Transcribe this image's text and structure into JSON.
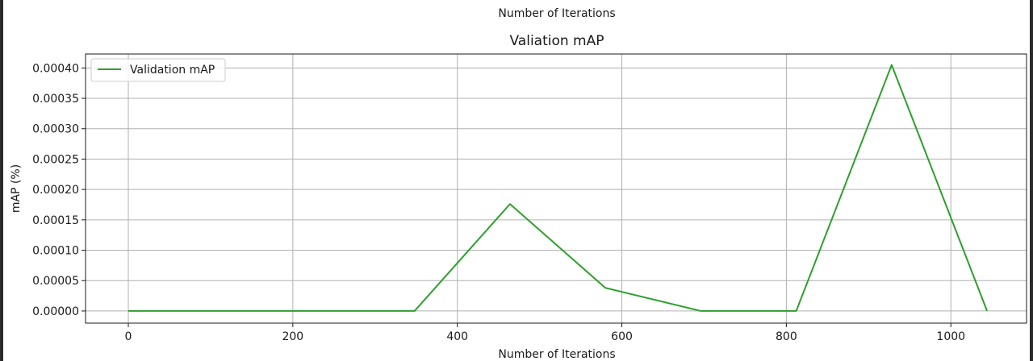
{
  "previous_chart": {
    "xlabel": "Number of Iterations"
  },
  "chart_data": {
    "type": "line",
    "title": "Valiation mAP",
    "xlabel": "Number of Iterations",
    "ylabel": "mAP (%)",
    "xlim": [
      -52,
      1092
    ],
    "ylim": [
      -2e-05,
      0.000423
    ],
    "xticks": [
      0,
      200,
      400,
      600,
      800,
      1000
    ],
    "xtick_labels": [
      "0",
      "200",
      "400",
      "600",
      "800",
      "1000"
    ],
    "yticks": [
      0.0,
      5e-05,
      0.0001,
      0.00015,
      0.0002,
      0.00025,
      0.0003,
      0.00035,
      0.0004
    ],
    "ytick_labels": [
      "0.00000",
      "0.00005",
      "0.00010",
      "0.00015",
      "0.00020",
      "0.00025",
      "0.00030",
      "0.00035",
      "0.00040"
    ],
    "grid": true,
    "legend_position": "top-left",
    "series": [
      {
        "name": "Validation mAP",
        "color": "#2ca02c",
        "x": [
          0,
          116,
          232,
          348,
          464,
          580,
          696,
          812,
          928,
          1044
        ],
        "y": [
          0.0,
          0.0,
          0.0,
          0.0,
          0.000176,
          3.8e-05,
          0.0,
          0.0,
          0.000405,
          0.0
        ]
      }
    ]
  }
}
